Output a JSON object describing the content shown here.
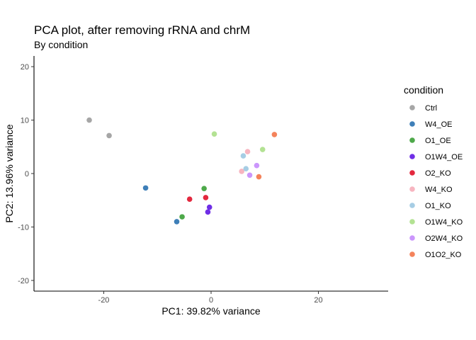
{
  "chart_data": {
    "type": "scatter",
    "title": "PCA plot, after removing rRNA and chrM",
    "subtitle": "By condition",
    "xlabel": "PC1: 39.82% variance",
    "ylabel": "PC2: 13.96% variance",
    "xlim": [
      -33,
      33
    ],
    "ylim": [
      -22,
      22
    ],
    "xticks": [
      -20,
      0,
      20
    ],
    "yticks": [
      -20,
      -10,
      0,
      10,
      20
    ],
    "grid": false,
    "legend": {
      "title": "condition",
      "position": "right"
    },
    "series": [
      {
        "name": "Ctrl",
        "color": "#a6a6a6",
        "points": [
          [
            -22.7,
            10.0
          ],
          [
            -19.0,
            7.1
          ]
        ]
      },
      {
        "name": "W4_OE",
        "color": "#3e7fb8",
        "points": [
          [
            -12.2,
            -2.7
          ],
          [
            -6.4,
            -9.0
          ]
        ]
      },
      {
        "name": "O1_OE",
        "color": "#4ea94a",
        "points": [
          [
            -1.3,
            -2.8
          ],
          [
            -5.4,
            -8.1
          ]
        ]
      },
      {
        "name": "O1W4_OE",
        "color": "#6f2ee6",
        "points": [
          [
            -0.3,
            -6.3
          ],
          [
            -0.6,
            -7.2
          ]
        ]
      },
      {
        "name": "O2_KO",
        "color": "#e3283e",
        "points": [
          [
            -4.0,
            -4.8
          ],
          [
            -1.0,
            -4.5
          ]
        ]
      },
      {
        "name": "W4_KO",
        "color": "#f7b5c0",
        "points": [
          [
            6.8,
            4.1
          ],
          [
            5.7,
            0.4
          ]
        ]
      },
      {
        "name": "O1_KO",
        "color": "#a6cde4",
        "points": [
          [
            6.0,
            3.3
          ],
          [
            6.5,
            0.9
          ]
        ]
      },
      {
        "name": "O1W4_KO",
        "color": "#b3e293",
        "points": [
          [
            0.6,
            7.4
          ],
          [
            9.6,
            4.5
          ]
        ]
      },
      {
        "name": "O2W4_KO",
        "color": "#cb96fc",
        "points": [
          [
            8.5,
            1.5
          ],
          [
            7.2,
            -0.3
          ]
        ]
      },
      {
        "name": "O1O2_KO",
        "color": "#f4835b",
        "points": [
          [
            11.8,
            7.3
          ],
          [
            8.9,
            -0.6
          ]
        ]
      }
    ]
  }
}
